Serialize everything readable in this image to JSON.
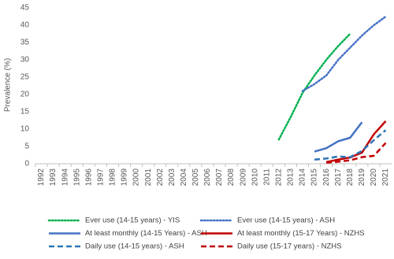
{
  "chart_data": {
    "type": "line",
    "y_label": "Prevalence (%)",
    "categories": [
      "1992",
      "1993",
      "1994",
      "1995",
      "1996",
      "1997",
      "1998",
      "1999",
      "2000",
      "2001",
      "2002",
      "2003",
      "2004",
      "2005",
      "2006",
      "2007",
      "2008",
      "2009",
      "2010",
      "2011",
      "2012",
      "2013",
      "2014",
      "2015",
      "2016",
      "2017",
      "2018",
      "2019",
      "2020",
      "2021"
    ],
    "ylim": [
      0,
      45
    ],
    "yticks": [
      0,
      5,
      10,
      15,
      20,
      25,
      30,
      35,
      40,
      45
    ],
    "grid": false,
    "legend": "bottom",
    "series": [
      {
        "name": "Ever use (14-15 years) - YIS",
        "color": "#00b050",
        "style": "dotted",
        "values": [
          null,
          null,
          null,
          null,
          null,
          null,
          null,
          null,
          null,
          null,
          null,
          null,
          null,
          null,
          null,
          null,
          null,
          null,
          null,
          null,
          7,
          13.5,
          20.5,
          25.5,
          30,
          34,
          37.5,
          null,
          null,
          null
        ]
      },
      {
        "name": "Ever use (14-15 years) - ASH",
        "color": "#4472c4",
        "style": "dotted",
        "values": [
          null,
          null,
          null,
          null,
          null,
          null,
          null,
          null,
          null,
          null,
          null,
          null,
          null,
          null,
          null,
          null,
          null,
          null,
          null,
          null,
          null,
          null,
          21,
          23,
          25.5,
          30,
          33.5,
          37,
          40,
          42.5
        ]
      },
      {
        "name": "At least monthly (14-15 Years) - ASH",
        "color": "#4472c4",
        "style": "solid",
        "values": [
          null,
          null,
          null,
          null,
          null,
          null,
          null,
          null,
          null,
          null,
          null,
          null,
          null,
          null,
          null,
          null,
          null,
          null,
          null,
          null,
          null,
          null,
          null,
          3.5,
          4.5,
          6.5,
          7.5,
          12,
          null,
          null
        ]
      },
      {
        "name": "At least monthly (15-17  Years) - NZHS",
        "color": "#c00000",
        "style": "solid",
        "values": [
          null,
          null,
          null,
          null,
          null,
          null,
          null,
          null,
          null,
          null,
          null,
          null,
          null,
          null,
          null,
          null,
          null,
          null,
          null,
          null,
          null,
          null,
          null,
          null,
          0.5,
          1.2,
          1.8,
          3.2,
          8.5,
          12.3
        ]
      },
      {
        "name": "Daily use (14-15 years) - ASH",
        "color": "#2e75b6",
        "style": "dashed",
        "values": [
          null,
          null,
          null,
          null,
          null,
          null,
          null,
          null,
          null,
          null,
          null,
          null,
          null,
          null,
          null,
          null,
          null,
          null,
          null,
          null,
          null,
          null,
          null,
          1.2,
          1.5,
          2.1,
          1.9,
          3.7,
          6.8,
          9.7
        ]
      },
      {
        "name": "Daily use (15-17  years) - NZHS",
        "color": "#c00000",
        "style": "dashed",
        "values": [
          null,
          null,
          null,
          null,
          null,
          null,
          null,
          null,
          null,
          null,
          null,
          null,
          null,
          null,
          null,
          null,
          null,
          null,
          null,
          null,
          null,
          null,
          null,
          null,
          0.3,
          0.6,
          1.0,
          1.9,
          2.3,
          6
        ]
      }
    ]
  }
}
